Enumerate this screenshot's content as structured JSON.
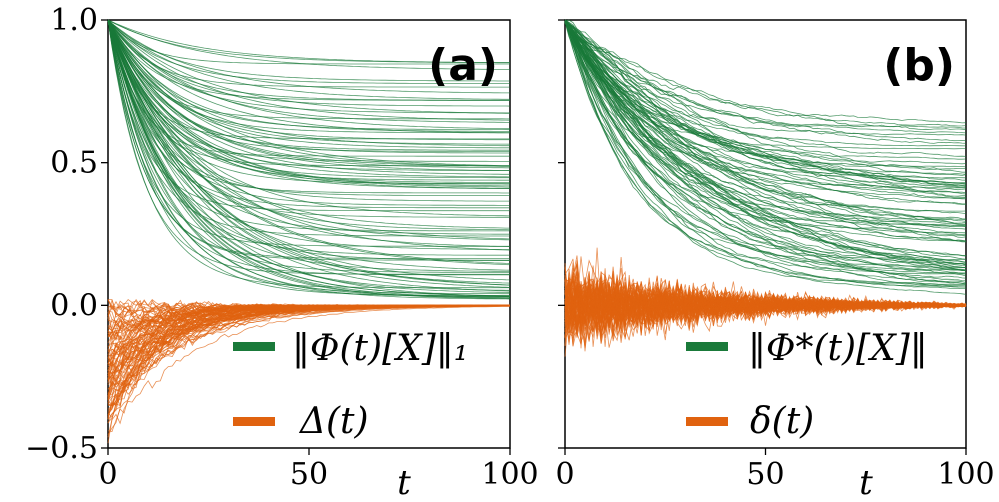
{
  "chart_data": [
    {
      "type": "line",
      "panel_label": "(a)",
      "xlabel": "t",
      "ylabel": "",
      "xlim": [
        0,
        100
      ],
      "ylim": [
        -0.5,
        1.0
      ],
      "x_ticks": [
        0,
        50,
        100
      ],
      "x_tick_labels": [
        "0",
        "50",
        "100"
      ],
      "y_ticks": [
        1.0,
        0.5,
        0.0,
        -0.5
      ],
      "y_tick_labels": [
        "1.0",
        "0.5",
        "0.0",
        "−0.5"
      ],
      "grid": false,
      "legend_position": "bottom-right",
      "series": [
        {
          "name": "‖Φ(t)[X]‖₁",
          "color": "#1a7a3a",
          "count": 100,
          "description": "decaying trajectories starting at 1.0, plateauing between about 0.02 and 0.85",
          "plateau_range": [
            0.02,
            0.85
          ],
          "decay_time_range": [
            8,
            24
          ]
        },
        {
          "name": "Δ(t)",
          "color": "#e0620f",
          "count": 100,
          "description": "noisy negative transients starting near -0.4 and decaying to 0 by about t = 60",
          "initial_range": [
            -0.45,
            0.0
          ],
          "decay_time": 15
        }
      ]
    },
    {
      "type": "line",
      "panel_label": "(b)",
      "xlabel": "t",
      "ylabel": "",
      "xlim": [
        0,
        100
      ],
      "ylim": [
        -0.5,
        1.0
      ],
      "x_ticks": [
        0,
        50,
        100
      ],
      "x_tick_labels": [
        "0",
        "50",
        "100"
      ],
      "y_ticks": [
        1.0,
        0.5,
        0.0,
        -0.5
      ],
      "grid": false,
      "legend_position": "bottom-right",
      "series": [
        {
          "name": "‖Φ*(t)[X]‖",
          "color": "#1a7a3a",
          "count": 90,
          "description": "noisy decaying trajectories starting at 1.0, plateauing between about 0.03 and 0.63",
          "plateau_range": [
            0.03,
            0.63
          ],
          "decay_time_range": [
            14,
            40
          ]
        },
        {
          "name": "δ(t)",
          "color": "#e0620f",
          "count": 90,
          "description": "noisy fluctuations around 0 of amplitude about 0.15 decaying with t",
          "amplitude": 0.15,
          "decay_time": 35
        }
      ]
    }
  ]
}
